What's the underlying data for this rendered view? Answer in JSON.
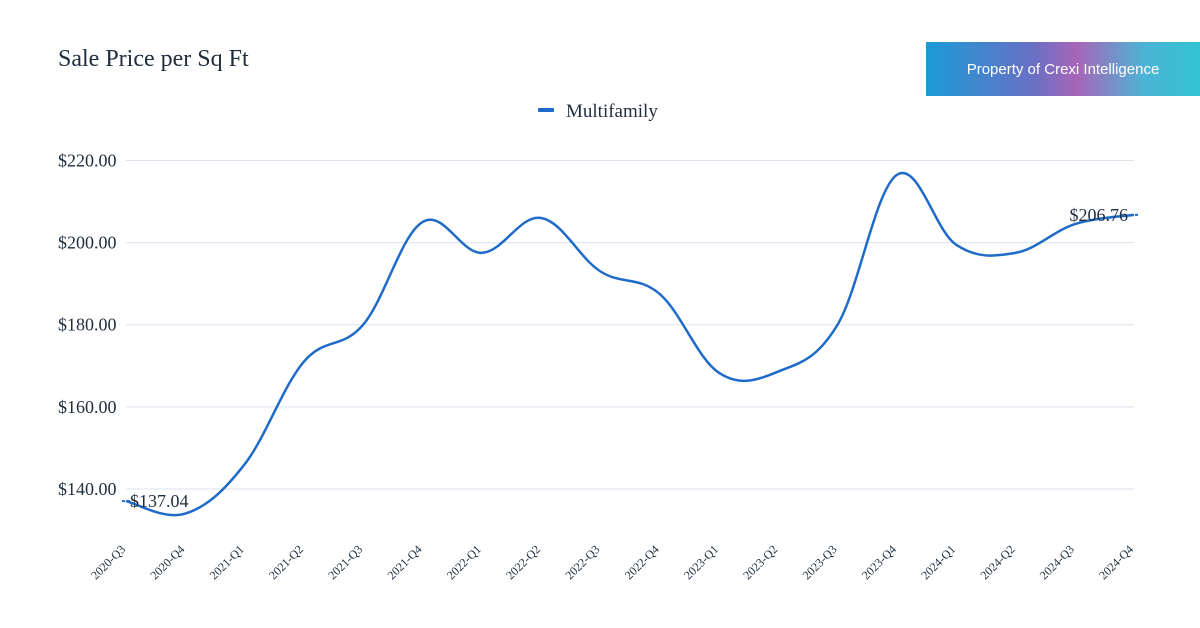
{
  "header": {
    "title": "Sale Price per Sq Ft",
    "badge": "Property of Crexi Intelligence"
  },
  "colors": {
    "series": "#1f6bc9",
    "grid": "#dbe3ef",
    "text": "#1f2d3d"
  },
  "chart_data": {
    "type": "line",
    "title": "Sale Price per Sq Ft",
    "xlabel": "",
    "ylabel": "",
    "ylim": [
      130,
      225
    ],
    "yticks": [
      "$140.00",
      "$160.00",
      "$180.00",
      "$200.00",
      "$220.00"
    ],
    "ytick_values": [
      140,
      160,
      180,
      200,
      220
    ],
    "grid": true,
    "legend_position": "top-center",
    "categories": [
      "2020-Q3",
      "2020-Q4",
      "2021-Q1",
      "2021-Q2",
      "2021-Q3",
      "2021-Q4",
      "2022-Q1",
      "2022-Q2",
      "2022-Q3",
      "2022-Q4",
      "2023-Q1",
      "2023-Q2",
      "2023-Q3",
      "2023-Q4",
      "2024-Q1",
      "2024-Q2",
      "2024-Q3",
      "2024-Q4"
    ],
    "series": [
      {
        "name": "Multifamily",
        "values": [
          137.04,
          134.0,
          146.0,
          171.0,
          180.0,
          205.0,
          197.5,
          206.0,
          193.0,
          187.5,
          168.3,
          168.6,
          180.0,
          216.5,
          199.5,
          197.5,
          204.5,
          206.76
        ]
      }
    ],
    "annotations": [
      {
        "label": "$137.04",
        "category": "2020-Q3",
        "value": 137.04
      },
      {
        "label": "$206.76",
        "category": "2024-Q4",
        "value": 206.76
      }
    ]
  }
}
